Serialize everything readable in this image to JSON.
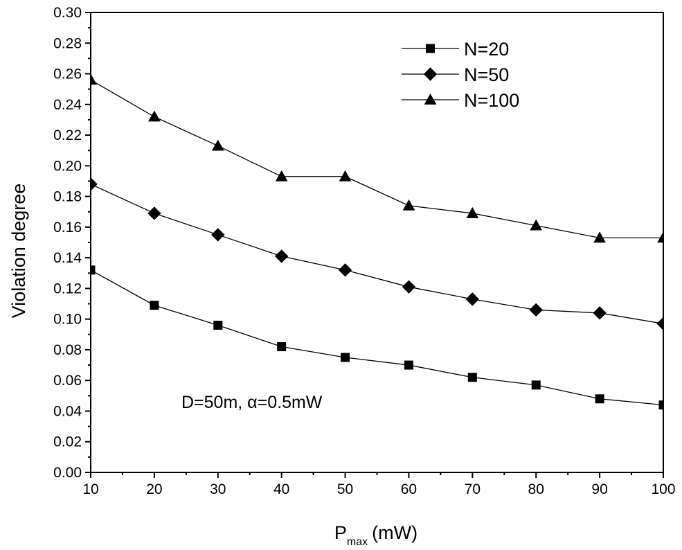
{
  "chart_data": {
    "type": "line",
    "xlabel": "P",
    "xlabel_sub": "max",
    "xlabel_unit": "(mW)",
    "ylabel": "Violation degree",
    "x": [
      10,
      20,
      30,
      40,
      50,
      60,
      70,
      80,
      90,
      100
    ],
    "xlim": [
      10,
      100
    ],
    "ylim": [
      0.0,
      0.3
    ],
    "x_ticks": [
      "10",
      "20",
      "30",
      "40",
      "50",
      "60",
      "70",
      "80",
      "90",
      "100"
    ],
    "y_ticks": [
      "0.00",
      "0.02",
      "0.04",
      "0.06",
      "0.08",
      "0.10",
      "0.12",
      "0.14",
      "0.16",
      "0.18",
      "0.20",
      "0.22",
      "0.24",
      "0.26",
      "0.28",
      "0.30"
    ],
    "grid": false,
    "legend_position": "top-right",
    "annotation": "D=50m, α=0.5mW",
    "series": [
      {
        "name": "N=20",
        "marker": "square",
        "values": [
          0.132,
          0.109,
          0.096,
          0.082,
          0.075,
          0.07,
          0.062,
          0.057,
          0.048,
          0.044
        ]
      },
      {
        "name": "N=50",
        "marker": "diamond",
        "values": [
          0.188,
          0.169,
          0.155,
          0.141,
          0.132,
          0.121,
          0.113,
          0.106,
          0.104,
          0.097
        ]
      },
      {
        "name": "N=100",
        "marker": "triangle",
        "values": [
          0.256,
          0.232,
          0.213,
          0.193,
          0.193,
          0.174,
          0.169,
          0.161,
          0.153,
          0.153
        ]
      }
    ]
  }
}
